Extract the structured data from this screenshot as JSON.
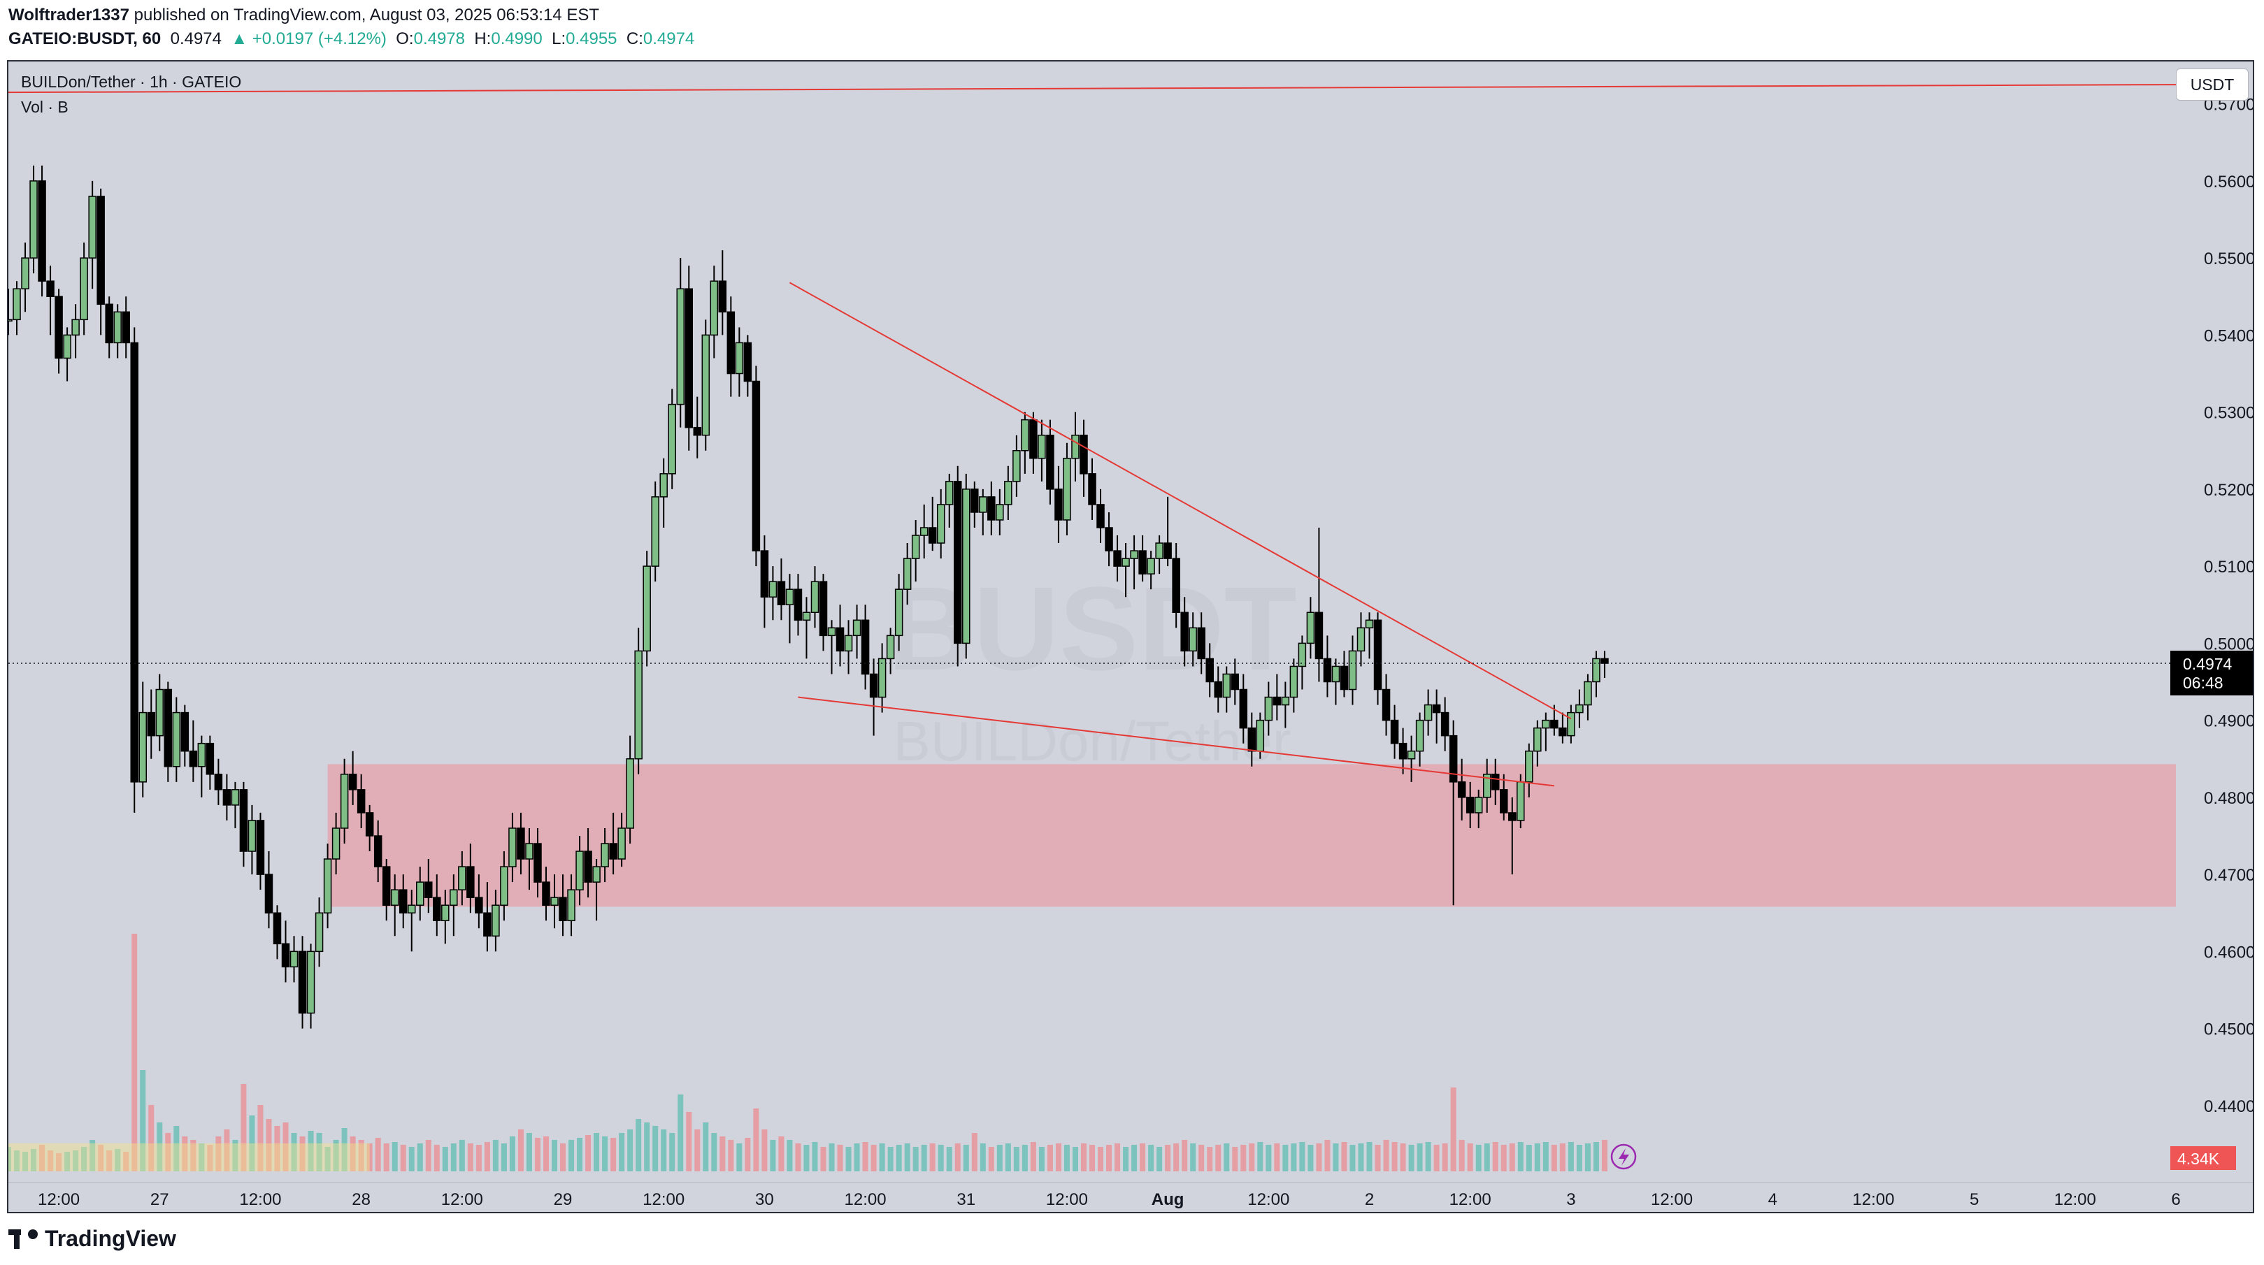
{
  "header": {
    "author": "Wolftrader1337",
    "published_text": " published on TradingView.com, August 03, 2025 06:53:14 EST",
    "symbol": "GATEIO:BUSDT, 60",
    "last": "0.4974",
    "change": "▲ +0.0197 (+4.12%)",
    "o_label": "O:",
    "o_value": "0.4978",
    "h_label": "H:",
    "h_value": "0.4990",
    "l_label": "L:",
    "l_value": "0.4955",
    "c_label": "C:",
    "c_value": "0.4974"
  },
  "pane": {
    "title": "BUILDon/Tether · 1h · GATEIO",
    "volume_label": "Vol · B",
    "currency_button": "USDT",
    "watermark_symbol": "BUSDT",
    "watermark_name": "BUILDon/Tether"
  },
  "price_label": {
    "price": "0.4974",
    "countdown": "06:48"
  },
  "volume_label_badge": "4.34K",
  "brand": "TradingView",
  "colors": {
    "up": "#7fbf87",
    "down": "#000000",
    "vol_up": "#6dbfb8",
    "vol_down": "#e8949a",
    "zone": "#e5a0aa",
    "trendline": "#e53935",
    "background": "#d1d4dc",
    "price_tag": "#000000",
    "vol_tag": "#f05555"
  },
  "chart_data": {
    "type": "candlestick",
    "symbol": "GATEIO:BUSDT",
    "timeframe": "1h",
    "y_axis": {
      "ticks": [
        "0.5700",
        "0.5600",
        "0.5500",
        "0.5400",
        "0.5300",
        "0.5200",
        "0.5100",
        "0.5000",
        "0.4900",
        "0.4800",
        "0.4700",
        "0.4600",
        "0.4500",
        "0.4400"
      ],
      "range": [
        0.434,
        0.5755
      ]
    },
    "x_axis": {
      "ticks": [
        "12:00",
        "27",
        "12:00",
        "28",
        "12:00",
        "29",
        "12:00",
        "30",
        "12:00",
        "31",
        "12:00",
        "Aug",
        "12:00",
        "2",
        "12:00",
        "3",
        "12:00",
        "4",
        "12:00",
        "5",
        "12:00",
        "6"
      ],
      "start": "Jul 26 06:00",
      "end": "Aug 6 00:00"
    },
    "current_price": 0.4974,
    "demand_zone": {
      "from": "Jul 27 20:00",
      "to": "Aug 6 00:00",
      "low": 0.4658,
      "high": 0.4843
    },
    "trendlines": [
      {
        "label": "upper",
        "from": [
          "Jul 30 03:00",
          0.5468
        ],
        "to": [
          "Aug 3 00:00",
          0.4902
        ]
      },
      {
        "label": "lower",
        "from": [
          "Jul 30 04:00",
          0.493
        ],
        "to": [
          "Aug 2 22:00",
          0.4815
        ]
      },
      {
        "label": "top",
        "from": [
          "Jul 26 06:00",
          0.5715
        ],
        "to": [
          "Aug 6 00:00",
          0.5725
        ]
      }
    ],
    "candles": [
      [
        0.542,
        0.546,
        0.54,
        0.542
      ],
      [
        0.542,
        0.547,
        0.54,
        0.546
      ],
      [
        0.546,
        0.552,
        0.543,
        0.55
      ],
      [
        0.55,
        0.562,
        0.548,
        0.56
      ],
      [
        0.56,
        0.562,
        0.545,
        0.547
      ],
      [
        0.547,
        0.549,
        0.54,
        0.545
      ],
      [
        0.545,
        0.546,
        0.535,
        0.537
      ],
      [
        0.537,
        0.541,
        0.534,
        0.54
      ],
      [
        0.54,
        0.544,
        0.537,
        0.542
      ],
      [
        0.542,
        0.552,
        0.54,
        0.55
      ],
      [
        0.55,
        0.56,
        0.546,
        0.558
      ],
      [
        0.558,
        0.559,
        0.54,
        0.544
      ],
      [
        0.544,
        0.545,
        0.537,
        0.539
      ],
      [
        0.539,
        0.544,
        0.537,
        0.543
      ],
      [
        0.543,
        0.545,
        0.537,
        0.539
      ],
      [
        0.539,
        0.541,
        0.478,
        0.482
      ],
      [
        0.482,
        0.495,
        0.48,
        0.491
      ],
      [
        0.491,
        0.494,
        0.485,
        0.488
      ],
      [
        0.488,
        0.496,
        0.486,
        0.494
      ],
      [
        0.494,
        0.495,
        0.482,
        0.484
      ],
      [
        0.484,
        0.493,
        0.482,
        0.491
      ],
      [
        0.491,
        0.492,
        0.484,
        0.486
      ],
      [
        0.486,
        0.49,
        0.482,
        0.484
      ],
      [
        0.484,
        0.488,
        0.48,
        0.487
      ],
      [
        0.487,
        0.488,
        0.481,
        0.483
      ],
      [
        0.483,
        0.485,
        0.479,
        0.481
      ],
      [
        0.481,
        0.483,
        0.477,
        0.479
      ],
      [
        0.479,
        0.482,
        0.476,
        0.481
      ],
      [
        0.481,
        0.482,
        0.471,
        0.473
      ],
      [
        0.473,
        0.479,
        0.47,
        0.477
      ],
      [
        0.477,
        0.478,
        0.468,
        0.47
      ],
      [
        0.47,
        0.473,
        0.463,
        0.465
      ],
      [
        0.465,
        0.466,
        0.459,
        0.461
      ],
      [
        0.461,
        0.464,
        0.456,
        0.458
      ],
      [
        0.458,
        0.462,
        0.456,
        0.46
      ],
      [
        0.46,
        0.462,
        0.45,
        0.452
      ],
      [
        0.452,
        0.461,
        0.45,
        0.46
      ],
      [
        0.46,
        0.467,
        0.458,
        0.465
      ],
      [
        0.465,
        0.474,
        0.463,
        0.472
      ],
      [
        0.472,
        0.478,
        0.47,
        0.476
      ],
      [
        0.476,
        0.485,
        0.474,
        0.483
      ],
      [
        0.483,
        0.486,
        0.479,
        0.481
      ],
      [
        0.481,
        0.483,
        0.476,
        0.478
      ],
      [
        0.478,
        0.479,
        0.473,
        0.475
      ],
      [
        0.475,
        0.477,
        0.469,
        0.471
      ],
      [
        0.471,
        0.472,
        0.464,
        0.466
      ],
      [
        0.466,
        0.47,
        0.462,
        0.468
      ],
      [
        0.468,
        0.47,
        0.463,
        0.465
      ],
      [
        0.465,
        0.468,
        0.46,
        0.466
      ],
      [
        0.466,
        0.471,
        0.464,
        0.469
      ],
      [
        0.469,
        0.472,
        0.465,
        0.467
      ],
      [
        0.467,
        0.47,
        0.462,
        0.464
      ],
      [
        0.464,
        0.468,
        0.461,
        0.466
      ],
      [
        0.466,
        0.47,
        0.462,
        0.468
      ],
      [
        0.468,
        0.473,
        0.466,
        0.471
      ],
      [
        0.471,
        0.474,
        0.465,
        0.467
      ],
      [
        0.467,
        0.47,
        0.463,
        0.465
      ],
      [
        0.465,
        0.469,
        0.46,
        0.462
      ],
      [
        0.462,
        0.468,
        0.46,
        0.466
      ],
      [
        0.466,
        0.473,
        0.464,
        0.471
      ],
      [
        0.471,
        0.478,
        0.469,
        0.476
      ],
      [
        0.476,
        0.478,
        0.47,
        0.472
      ],
      [
        0.472,
        0.476,
        0.468,
        0.474
      ],
      [
        0.474,
        0.476,
        0.467,
        0.469
      ],
      [
        0.469,
        0.471,
        0.464,
        0.466
      ],
      [
        0.466,
        0.47,
        0.463,
        0.467
      ],
      [
        0.467,
        0.47,
        0.462,
        0.464
      ],
      [
        0.464,
        0.47,
        0.462,
        0.468
      ],
      [
        0.468,
        0.475,
        0.466,
        0.473
      ],
      [
        0.473,
        0.476,
        0.467,
        0.469
      ],
      [
        0.469,
        0.472,
        0.464,
        0.471
      ],
      [
        0.471,
        0.476,
        0.469,
        0.474
      ],
      [
        0.474,
        0.478,
        0.47,
        0.472
      ],
      [
        0.472,
        0.478,
        0.471,
        0.476
      ],
      [
        0.476,
        0.488,
        0.474,
        0.485
      ],
      [
        0.485,
        0.502,
        0.483,
        0.499
      ],
      [
        0.499,
        0.512,
        0.497,
        0.51
      ],
      [
        0.51,
        0.521,
        0.508,
        0.519
      ],
      [
        0.519,
        0.524,
        0.515,
        0.522
      ],
      [
        0.522,
        0.533,
        0.52,
        0.531
      ],
      [
        0.531,
        0.55,
        0.528,
        0.546
      ],
      [
        0.546,
        0.549,
        0.525,
        0.528
      ],
      [
        0.528,
        0.532,
        0.524,
        0.527
      ],
      [
        0.527,
        0.542,
        0.525,
        0.54
      ],
      [
        0.54,
        0.549,
        0.537,
        0.547
      ],
      [
        0.547,
        0.551,
        0.54,
        0.543
      ],
      [
        0.543,
        0.545,
        0.532,
        0.535
      ],
      [
        0.535,
        0.541,
        0.532,
        0.539
      ],
      [
        0.539,
        0.54,
        0.532,
        0.534
      ],
      [
        0.534,
        0.536,
        0.51,
        0.512
      ],
      [
        0.512,
        0.514,
        0.502,
        0.506
      ],
      [
        0.506,
        0.51,
        0.503,
        0.508
      ],
      [
        0.508,
        0.511,
        0.503,
        0.505
      ],
      [
        0.505,
        0.509,
        0.5,
        0.507
      ],
      [
        0.507,
        0.509,
        0.501,
        0.503
      ],
      [
        0.503,
        0.506,
        0.498,
        0.504
      ],
      [
        0.504,
        0.51,
        0.502,
        0.508
      ],
      [
        0.508,
        0.509,
        0.499,
        0.501
      ],
      [
        0.501,
        0.503,
        0.496,
        0.502
      ],
      [
        0.502,
        0.505,
        0.497,
        0.499
      ],
      [
        0.499,
        0.503,
        0.496,
        0.501
      ],
      [
        0.501,
        0.505,
        0.498,
        0.503
      ],
      [
        0.503,
        0.505,
        0.494,
        0.496
      ],
      [
        0.496,
        0.498,
        0.488,
        0.493
      ],
      [
        0.493,
        0.5,
        0.491,
        0.498
      ],
      [
        0.498,
        0.502,
        0.496,
        0.501
      ],
      [
        0.501,
        0.509,
        0.499,
        0.507
      ],
      [
        0.507,
        0.513,
        0.505,
        0.511
      ],
      [
        0.511,
        0.516,
        0.508,
        0.514
      ],
      [
        0.514,
        0.518,
        0.511,
        0.515
      ],
      [
        0.515,
        0.519,
        0.512,
        0.513
      ],
      [
        0.513,
        0.52,
        0.511,
        0.518
      ],
      [
        0.518,
        0.522,
        0.515,
        0.521
      ],
      [
        0.521,
        0.523,
        0.497,
        0.5
      ],
      [
        0.5,
        0.522,
        0.498,
        0.52
      ],
      [
        0.52,
        0.521,
        0.515,
        0.517
      ],
      [
        0.517,
        0.52,
        0.514,
        0.519
      ],
      [
        0.519,
        0.521,
        0.514,
        0.516
      ],
      [
        0.516,
        0.52,
        0.514,
        0.518
      ],
      [
        0.518,
        0.523,
        0.516,
        0.521
      ],
      [
        0.521,
        0.527,
        0.519,
        0.525
      ],
      [
        0.525,
        0.53,
        0.522,
        0.529
      ],
      [
        0.529,
        0.53,
        0.522,
        0.524
      ],
      [
        0.524,
        0.529,
        0.521,
        0.527
      ],
      [
        0.527,
        0.529,
        0.518,
        0.52
      ],
      [
        0.52,
        0.523,
        0.513,
        0.516
      ],
      [
        0.516,
        0.526,
        0.514,
        0.524
      ],
      [
        0.524,
        0.53,
        0.521,
        0.527
      ],
      [
        0.527,
        0.529,
        0.519,
        0.522
      ],
      [
        0.522,
        0.524,
        0.516,
        0.518
      ],
      [
        0.518,
        0.52,
        0.513,
        0.515
      ],
      [
        0.515,
        0.517,
        0.51,
        0.512
      ],
      [
        0.512,
        0.514,
        0.508,
        0.51
      ],
      [
        0.51,
        0.513,
        0.506,
        0.511
      ],
      [
        0.511,
        0.514,
        0.507,
        0.512
      ],
      [
        0.512,
        0.514,
        0.508,
        0.509
      ],
      [
        0.509,
        0.512,
        0.507,
        0.511
      ],
      [
        0.511,
        0.514,
        0.509,
        0.513
      ],
      [
        0.513,
        0.519,
        0.51,
        0.511
      ],
      [
        0.511,
        0.513,
        0.502,
        0.504
      ],
      [
        0.504,
        0.506,
        0.497,
        0.499
      ],
      [
        0.499,
        0.504,
        0.497,
        0.502
      ],
      [
        0.502,
        0.504,
        0.496,
        0.498
      ],
      [
        0.498,
        0.5,
        0.493,
        0.495
      ],
      [
        0.495,
        0.497,
        0.491,
        0.493
      ],
      [
        0.493,
        0.497,
        0.491,
        0.496
      ],
      [
        0.496,
        0.498,
        0.492,
        0.494
      ],
      [
        0.494,
        0.496,
        0.487,
        0.489
      ],
      [
        0.489,
        0.491,
        0.484,
        0.486
      ],
      [
        0.486,
        0.491,
        0.485,
        0.49
      ],
      [
        0.49,
        0.495,
        0.488,
        0.493
      ],
      [
        0.493,
        0.496,
        0.49,
        0.492
      ],
      [
        0.492,
        0.495,
        0.489,
        0.493
      ],
      [
        0.493,
        0.498,
        0.491,
        0.497
      ],
      [
        0.497,
        0.501,
        0.494,
        0.5
      ],
      [
        0.5,
        0.506,
        0.498,
        0.504
      ],
      [
        0.504,
        0.515,
        0.495,
        0.498
      ],
      [
        0.498,
        0.501,
        0.493,
        0.495
      ],
      [
        0.495,
        0.498,
        0.492,
        0.497
      ],
      [
        0.497,
        0.499,
        0.493,
        0.494
      ],
      [
        0.494,
        0.501,
        0.492,
        0.499
      ],
      [
        0.499,
        0.504,
        0.497,
        0.502
      ],
      [
        0.502,
        0.504,
        0.498,
        0.503
      ],
      [
        0.503,
        0.504,
        0.492,
        0.494
      ],
      [
        0.494,
        0.496,
        0.488,
        0.49
      ],
      [
        0.49,
        0.492,
        0.485,
        0.487
      ],
      [
        0.487,
        0.489,
        0.483,
        0.485
      ],
      [
        0.485,
        0.488,
        0.482,
        0.486
      ],
      [
        0.486,
        0.491,
        0.484,
        0.49
      ],
      [
        0.49,
        0.494,
        0.488,
        0.492
      ],
      [
        0.492,
        0.494,
        0.487,
        0.491
      ],
      [
        0.491,
        0.493,
        0.486,
        0.488
      ],
      [
        0.488,
        0.49,
        0.466,
        0.482
      ],
      [
        0.482,
        0.485,
        0.477,
        0.48
      ],
      [
        0.48,
        0.482,
        0.476,
        0.478
      ],
      [
        0.478,
        0.481,
        0.476,
        0.48
      ],
      [
        0.48,
        0.485,
        0.478,
        0.483
      ],
      [
        0.483,
        0.485,
        0.479,
        0.481
      ],
      [
        0.481,
        0.483,
        0.477,
        0.478
      ],
      [
        0.478,
        0.48,
        0.47,
        0.477
      ],
      [
        0.477,
        0.483,
        0.476,
        0.482
      ],
      [
        0.482,
        0.487,
        0.48,
        0.486
      ],
      [
        0.486,
        0.49,
        0.484,
        0.489
      ],
      [
        0.489,
        0.491,
        0.486,
        0.49
      ],
      [
        0.49,
        0.492,
        0.488,
        0.489
      ],
      [
        0.489,
        0.491,
        0.487,
        0.488
      ],
      [
        0.488,
        0.492,
        0.487,
        0.491
      ],
      [
        0.491,
        0.494,
        0.489,
        0.492
      ],
      [
        0.492,
        0.496,
        0.49,
        0.495
      ],
      [
        0.495,
        0.499,
        0.493,
        0.498
      ],
      [
        0.498,
        0.499,
        0.4955,
        0.4974
      ]
    ],
    "volume": [
      0.35,
      0.3,
      0.28,
      0.32,
      0.38,
      0.3,
      0.26,
      0.28,
      0.3,
      0.35,
      0.45,
      0.38,
      0.3,
      0.32,
      0.28,
      3.4,
      1.45,
      0.95,
      0.7,
      0.55,
      0.65,
      0.5,
      0.45,
      0.4,
      0.38,
      0.5,
      0.6,
      0.45,
      1.25,
      0.8,
      0.95,
      0.75,
      0.65,
      0.7,
      0.55,
      0.5,
      0.58,
      0.55,
      0.35,
      0.45,
      0.62,
      0.5,
      0.45,
      0.4,
      0.48,
      0.4,
      0.42,
      0.38,
      0.35,
      0.4,
      0.45,
      0.38,
      0.35,
      0.4,
      0.45,
      0.4,
      0.38,
      0.42,
      0.45,
      0.4,
      0.5,
      0.6,
      0.55,
      0.48,
      0.5,
      0.45,
      0.4,
      0.45,
      0.48,
      0.52,
      0.55,
      0.5,
      0.48,
      0.55,
      0.6,
      0.75,
      0.7,
      0.65,
      0.6,
      0.55,
      1.1,
      0.85,
      0.6,
      0.7,
      0.55,
      0.5,
      0.45,
      0.4,
      0.48,
      0.9,
      0.6,
      0.45,
      0.5,
      0.45,
      0.4,
      0.38,
      0.42,
      0.35,
      0.4,
      0.38,
      0.35,
      0.4,
      0.42,
      0.38,
      0.4,
      0.35,
      0.38,
      0.4,
      0.35,
      0.38,
      0.4,
      0.38,
      0.35,
      0.4,
      0.38,
      0.55,
      0.4,
      0.35,
      0.38,
      0.4,
      0.35,
      0.38,
      0.42,
      0.35,
      0.38,
      0.4,
      0.38,
      0.35,
      0.4,
      0.38,
      0.35,
      0.38,
      0.4,
      0.35,
      0.38,
      0.4,
      0.38,
      0.35,
      0.38,
      0.4,
      0.45,
      0.4,
      0.38,
      0.35,
      0.38,
      0.4,
      0.35,
      0.38,
      0.4,
      0.42,
      0.38,
      0.4,
      0.38,
      0.4,
      0.42,
      0.38,
      0.4,
      0.45,
      0.4,
      0.42,
      0.38,
      0.4,
      0.42,
      0.38,
      0.45,
      0.42,
      0.4,
      0.38,
      0.4,
      0.42,
      0.38,
      0.4,
      1.2,
      0.45,
      0.4,
      0.38,
      0.4,
      0.42,
      0.38,
      0.4,
      0.42,
      0.38,
      0.4,
      0.42,
      0.38,
      0.4,
      0.42,
      0.38,
      0.4,
      0.42,
      0.45
    ],
    "volume_label": "4.34K"
  }
}
